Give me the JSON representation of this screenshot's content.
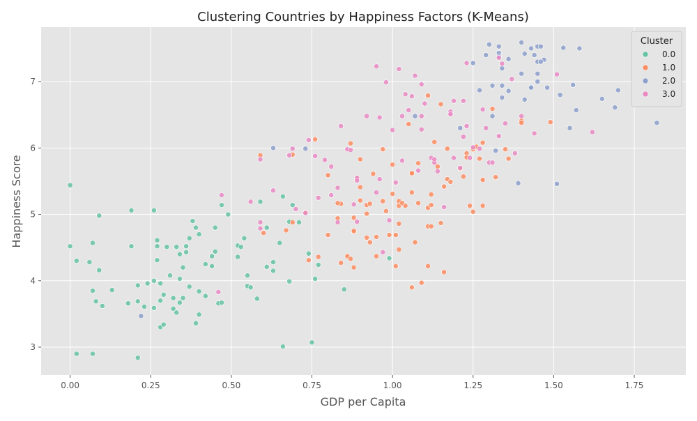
{
  "chart_data": {
    "type": "scatter",
    "title": "Clustering Countries by Happiness Factors (K-Means)",
    "xlabel": "GDP per Capita",
    "ylabel": "Happiness Score",
    "xlim": [
      -0.09,
      1.91
    ],
    "ylim": [
      2.58,
      7.82
    ],
    "xticks": [
      0.0,
      0.25,
      0.5,
      0.75,
      1.0,
      1.25,
      1.5,
      1.75
    ],
    "yticks": [
      3,
      4,
      5,
      6,
      7
    ],
    "grid": true,
    "legend": {
      "title": "Cluster",
      "position": "top-right"
    },
    "series": [
      {
        "name": "0.0",
        "color": "#66c2a5",
        "points": [
          [
            0.0,
            5.44
          ],
          [
            0.0,
            4.52
          ],
          [
            0.02,
            4.3
          ],
          [
            0.02,
            2.9
          ],
          [
            0.06,
            4.28
          ],
          [
            0.07,
            4.57
          ],
          [
            0.07,
            3.85
          ],
          [
            0.07,
            2.9
          ],
          [
            0.08,
            3.69
          ],
          [
            0.09,
            4.98
          ],
          [
            0.09,
            4.16
          ],
          [
            0.1,
            3.62
          ],
          [
            0.13,
            3.86
          ],
          [
            0.18,
            3.66
          ],
          [
            0.19,
            5.06
          ],
          [
            0.19,
            4.52
          ],
          [
            0.21,
            3.69
          ],
          [
            0.21,
            2.84
          ],
          [
            0.21,
            3.93
          ],
          [
            0.23,
            3.61
          ],
          [
            0.24,
            3.96
          ],
          [
            0.26,
            5.06
          ],
          [
            0.26,
            4.0
          ],
          [
            0.26,
            3.59
          ],
          [
            0.27,
            4.61
          ],
          [
            0.27,
            4.52
          ],
          [
            0.27,
            4.31
          ],
          [
            0.28,
            3.7
          ],
          [
            0.28,
            3.96
          ],
          [
            0.28,
            3.3
          ],
          [
            0.29,
            3.79
          ],
          [
            0.29,
            3.34
          ],
          [
            0.3,
            4.51
          ],
          [
            0.31,
            4.08
          ],
          [
            0.32,
            3.74
          ],
          [
            0.32,
            3.58
          ],
          [
            0.33,
            3.52
          ],
          [
            0.33,
            4.51
          ],
          [
            0.34,
            4.4
          ],
          [
            0.34,
            4.03
          ],
          [
            0.34,
            3.67
          ],
          [
            0.35,
            3.74
          ],
          [
            0.35,
            4.2
          ],
          [
            0.36,
            4.52
          ],
          [
            0.36,
            4.43
          ],
          [
            0.37,
            4.64
          ],
          [
            0.37,
            3.91
          ],
          [
            0.38,
            4.9
          ],
          [
            0.39,
            3.36
          ],
          [
            0.39,
            4.8
          ],
          [
            0.4,
            3.84
          ],
          [
            0.4,
            4.7
          ],
          [
            0.4,
            3.49
          ],
          [
            0.42,
            4.25
          ],
          [
            0.42,
            3.77
          ],
          [
            0.44,
            4.37
          ],
          [
            0.44,
            4.22
          ],
          [
            0.45,
            4.8
          ],
          [
            0.45,
            4.44
          ],
          [
            0.46,
            3.66
          ],
          [
            0.47,
            3.67
          ],
          [
            0.47,
            5.14
          ],
          [
            0.49,
            5.0
          ],
          [
            0.52,
            4.53
          ],
          [
            0.52,
            4.36
          ],
          [
            0.53,
            4.51
          ],
          [
            0.54,
            4.64
          ],
          [
            0.55,
            4.08
          ],
          [
            0.55,
            3.92
          ],
          [
            0.56,
            3.9
          ],
          [
            0.58,
            3.73
          ],
          [
            0.59,
            5.19
          ],
          [
            0.61,
            4.8
          ],
          [
            0.61,
            4.21
          ],
          [
            0.63,
            4.28
          ],
          [
            0.63,
            4.15
          ],
          [
            0.65,
            4.57
          ],
          [
            0.66,
            5.27
          ],
          [
            0.66,
            3.01
          ],
          [
            0.68,
            4.89
          ],
          [
            0.68,
            3.99
          ],
          [
            0.69,
            5.14
          ],
          [
            0.71,
            4.88
          ],
          [
            0.74,
            4.41
          ],
          [
            0.75,
            3.07
          ],
          [
            0.76,
            4.03
          ],
          [
            0.77,
            4.24
          ],
          [
            0.85,
            3.87
          ],
          [
            0.99,
            4.34
          ]
        ]
      },
      {
        "name": "1.0",
        "color": "#fc8d62",
        "points": [
          [
            0.59,
            5.89
          ],
          [
            0.6,
            4.72
          ],
          [
            0.67,
            4.76
          ],
          [
            0.69,
            5.9
          ],
          [
            0.69,
            4.88
          ],
          [
            0.73,
            5.03
          ],
          [
            0.74,
            4.31
          ],
          [
            0.76,
            6.13
          ],
          [
            0.77,
            4.36
          ],
          [
            0.8,
            4.69
          ],
          [
            0.8,
            5.59
          ],
          [
            0.83,
            4.94
          ],
          [
            0.84,
            4.27
          ],
          [
            0.84,
            5.16
          ],
          [
            0.86,
            4.37
          ],
          [
            0.87,
            4.33
          ],
          [
            0.87,
            6.07
          ],
          [
            0.88,
            4.95
          ],
          [
            0.88,
            4.74
          ],
          [
            0.88,
            4.2
          ],
          [
            0.89,
            5.54
          ],
          [
            0.9,
            5.83
          ],
          [
            0.9,
            5.41
          ],
          [
            0.9,
            5.21
          ],
          [
            0.92,
            5.01
          ],
          [
            0.92,
            4.65
          ],
          [
            0.92,
            5.14
          ],
          [
            0.93,
            4.58
          ],
          [
            0.93,
            5.16
          ],
          [
            0.94,
            5.61
          ],
          [
            0.95,
            4.37
          ],
          [
            0.95,
            4.66
          ],
          [
            0.97,
            5.2
          ],
          [
            0.97,
            5.98
          ],
          [
            0.98,
            5.05
          ],
          [
            0.99,
            4.69
          ],
          [
            1.0,
            5.75
          ],
          [
            1.0,
            5.31
          ],
          [
            1.01,
            4.69
          ],
          [
            1.01,
            4.22
          ],
          [
            1.02,
            4.47
          ],
          [
            1.02,
            4.86
          ],
          [
            1.02,
            5.13
          ],
          [
            1.02,
            5.2
          ],
          [
            1.03,
            5.17
          ],
          [
            1.04,
            5.13
          ],
          [
            1.05,
            6.36
          ],
          [
            1.06,
            5.33
          ],
          [
            1.06,
            5.62
          ],
          [
            1.06,
            3.9
          ],
          [
            1.07,
            4.58
          ],
          [
            1.08,
            5.77
          ],
          [
            1.08,
            5.17
          ],
          [
            1.09,
            3.97
          ],
          [
            1.11,
            4.22
          ],
          [
            1.11,
            4.82
          ],
          [
            1.11,
            5.1
          ],
          [
            1.12,
            4.82
          ],
          [
            1.12,
            5.3
          ],
          [
            1.12,
            5.14
          ],
          [
            1.13,
            5.8
          ],
          [
            1.13,
            6.09
          ],
          [
            1.14,
            5.72
          ],
          [
            1.15,
            6.66
          ],
          [
            1.15,
            4.87
          ],
          [
            1.16,
            4.13
          ],
          [
            1.16,
            5.42
          ],
          [
            1.17,
            5.53
          ],
          [
            1.17,
            5.99
          ],
          [
            1.18,
            5.49
          ],
          [
            1.21,
            5.69
          ],
          [
            1.22,
            5.57
          ],
          [
            1.23,
            5.92
          ],
          [
            1.23,
            5.86
          ],
          [
            1.24,
            5.13
          ],
          [
            1.25,
            5.04
          ],
          [
            1.25,
            5.98
          ],
          [
            1.26,
            6.02
          ],
          [
            1.27,
            5.84
          ],
          [
            1.28,
            5.52
          ],
          [
            1.28,
            6.08
          ],
          [
            1.28,
            5.13
          ],
          [
            1.31,
            6.59
          ],
          [
            1.32,
            5.56
          ],
          [
            1.35,
            5.98
          ],
          [
            1.36,
            5.84
          ],
          [
            1.4,
            6.41
          ],
          [
            1.4,
            6.38
          ],
          [
            1.49,
            6.39
          ],
          [
            1.11,
            6.79
          ],
          [
            1.06,
            5.62
          ],
          [
            0.83,
            5.17
          ],
          [
            0.88,
            4.75
          ]
        ]
      },
      {
        "name": "2.0",
        "color": "#8da0cb",
        "points": [
          [
            0.22,
            3.47
          ],
          [
            0.63,
            6.0
          ],
          [
            0.73,
            5.99
          ],
          [
            1.07,
            6.48
          ],
          [
            1.21,
            6.3
          ],
          [
            1.25,
            7.28
          ],
          [
            1.27,
            6.87
          ],
          [
            1.29,
            7.4
          ],
          [
            1.3,
            7.56
          ],
          [
            1.31,
            6.94
          ],
          [
            1.31,
            6.48
          ],
          [
            1.32,
            5.96
          ],
          [
            1.33,
            7.53
          ],
          [
            1.33,
            7.43
          ],
          [
            1.33,
            7.38
          ],
          [
            1.34,
            6.94
          ],
          [
            1.34,
            7.2
          ],
          [
            1.34,
            6.76
          ],
          [
            1.36,
            7.34
          ],
          [
            1.36,
            6.86
          ],
          [
            1.39,
            5.47
          ],
          [
            1.4,
            7.59
          ],
          [
            1.4,
            7.12
          ],
          [
            1.41,
            6.73
          ],
          [
            1.41,
            7.42
          ],
          [
            1.43,
            7.5
          ],
          [
            1.43,
            6.92
          ],
          [
            1.43,
            6.91
          ],
          [
            1.44,
            7.4
          ],
          [
            1.45,
            7.53
          ],
          [
            1.45,
            7.3
          ],
          [
            1.45,
            7.0
          ],
          [
            1.45,
            7.12
          ],
          [
            1.46,
            7.53
          ],
          [
            1.47,
            7.33
          ],
          [
            1.48,
            6.91
          ],
          [
            1.51,
            5.46
          ],
          [
            1.52,
            6.8
          ],
          [
            1.53,
            7.51
          ],
          [
            1.55,
            6.3
          ],
          [
            1.56,
            6.95
          ],
          [
            1.57,
            6.57
          ],
          [
            1.58,
            7.5
          ],
          [
            1.65,
            6.74
          ],
          [
            1.69,
            6.61
          ],
          [
            1.7,
            6.87
          ],
          [
            1.82,
            6.38
          ],
          [
            1.46,
            7.3
          ]
        ]
      },
      {
        "name": "3.0",
        "color": "#e78ac3",
        "points": [
          [
            0.46,
            3.83
          ],
          [
            0.47,
            5.29
          ],
          [
            0.56,
            5.19
          ],
          [
            0.59,
            5.83
          ],
          [
            0.59,
            4.88
          ],
          [
            0.59,
            4.79
          ],
          [
            0.63,
            5.36
          ],
          [
            0.68,
            5.89
          ],
          [
            0.69,
            5.99
          ],
          [
            0.7,
            5.08
          ],
          [
            0.73,
            5.02
          ],
          [
            0.74,
            6.12
          ],
          [
            0.76,
            5.88
          ],
          [
            0.77,
            5.25
          ],
          [
            0.79,
            5.82
          ],
          [
            0.81,
            5.72
          ],
          [
            0.81,
            5.29
          ],
          [
            0.83,
            5.4
          ],
          [
            0.83,
            4.88
          ],
          [
            0.84,
            6.33
          ],
          [
            0.86,
            5.98
          ],
          [
            0.87,
            5.97
          ],
          [
            0.88,
            5.15
          ],
          [
            0.89,
            5.55
          ],
          [
            0.89,
            5.51
          ],
          [
            0.89,
            4.89
          ],
          [
            0.92,
            6.48
          ],
          [
            0.95,
            5.33
          ],
          [
            0.95,
            7.23
          ],
          [
            0.96,
            5.53
          ],
          [
            0.96,
            6.46
          ],
          [
            0.97,
            4.43
          ],
          [
            0.98,
            6.99
          ],
          [
            0.99,
            4.91
          ],
          [
            1.0,
            6.27
          ],
          [
            1.01,
            5.48
          ],
          [
            1.02,
            7.19
          ],
          [
            1.03,
            6.48
          ],
          [
            1.03,
            5.81
          ],
          [
            1.04,
            6.81
          ],
          [
            1.05,
            6.57
          ],
          [
            1.06,
            6.78
          ],
          [
            1.07,
            7.09
          ],
          [
            1.08,
            5.66
          ],
          [
            1.09,
            6.96
          ],
          [
            1.09,
            6.48
          ],
          [
            1.09,
            6.28
          ],
          [
            1.1,
            6.67
          ],
          [
            1.12,
            5.85
          ],
          [
            1.13,
            5.78
          ],
          [
            1.14,
            5.65
          ],
          [
            1.16,
            5.11
          ],
          [
            1.18,
            6.52
          ],
          [
            1.18,
            6.55
          ],
          [
            1.19,
            6.71
          ],
          [
            1.19,
            5.85
          ],
          [
            1.21,
            5.7
          ],
          [
            1.22,
            6.17
          ],
          [
            1.22,
            6.71
          ],
          [
            1.23,
            6.33
          ],
          [
            1.23,
            7.28
          ],
          [
            1.24,
            5.85
          ],
          [
            1.25,
            6.01
          ],
          [
            1.27,
            5.99
          ],
          [
            1.28,
            6.58
          ],
          [
            1.29,
            6.3
          ],
          [
            1.3,
            5.78
          ],
          [
            1.31,
            5.78
          ],
          [
            1.33,
            6.18
          ],
          [
            1.33,
            7.36
          ],
          [
            1.34,
            7.27
          ],
          [
            1.35,
            6.37
          ],
          [
            1.37,
            7.04
          ],
          [
            1.38,
            5.92
          ],
          [
            1.4,
            6.48
          ],
          [
            1.44,
            6.22
          ],
          [
            1.51,
            7.11
          ],
          [
            1.62,
            6.24
          ],
          [
            1.18,
            6.51
          ],
          [
            1.13,
            5.83
          ]
        ]
      }
    ]
  }
}
